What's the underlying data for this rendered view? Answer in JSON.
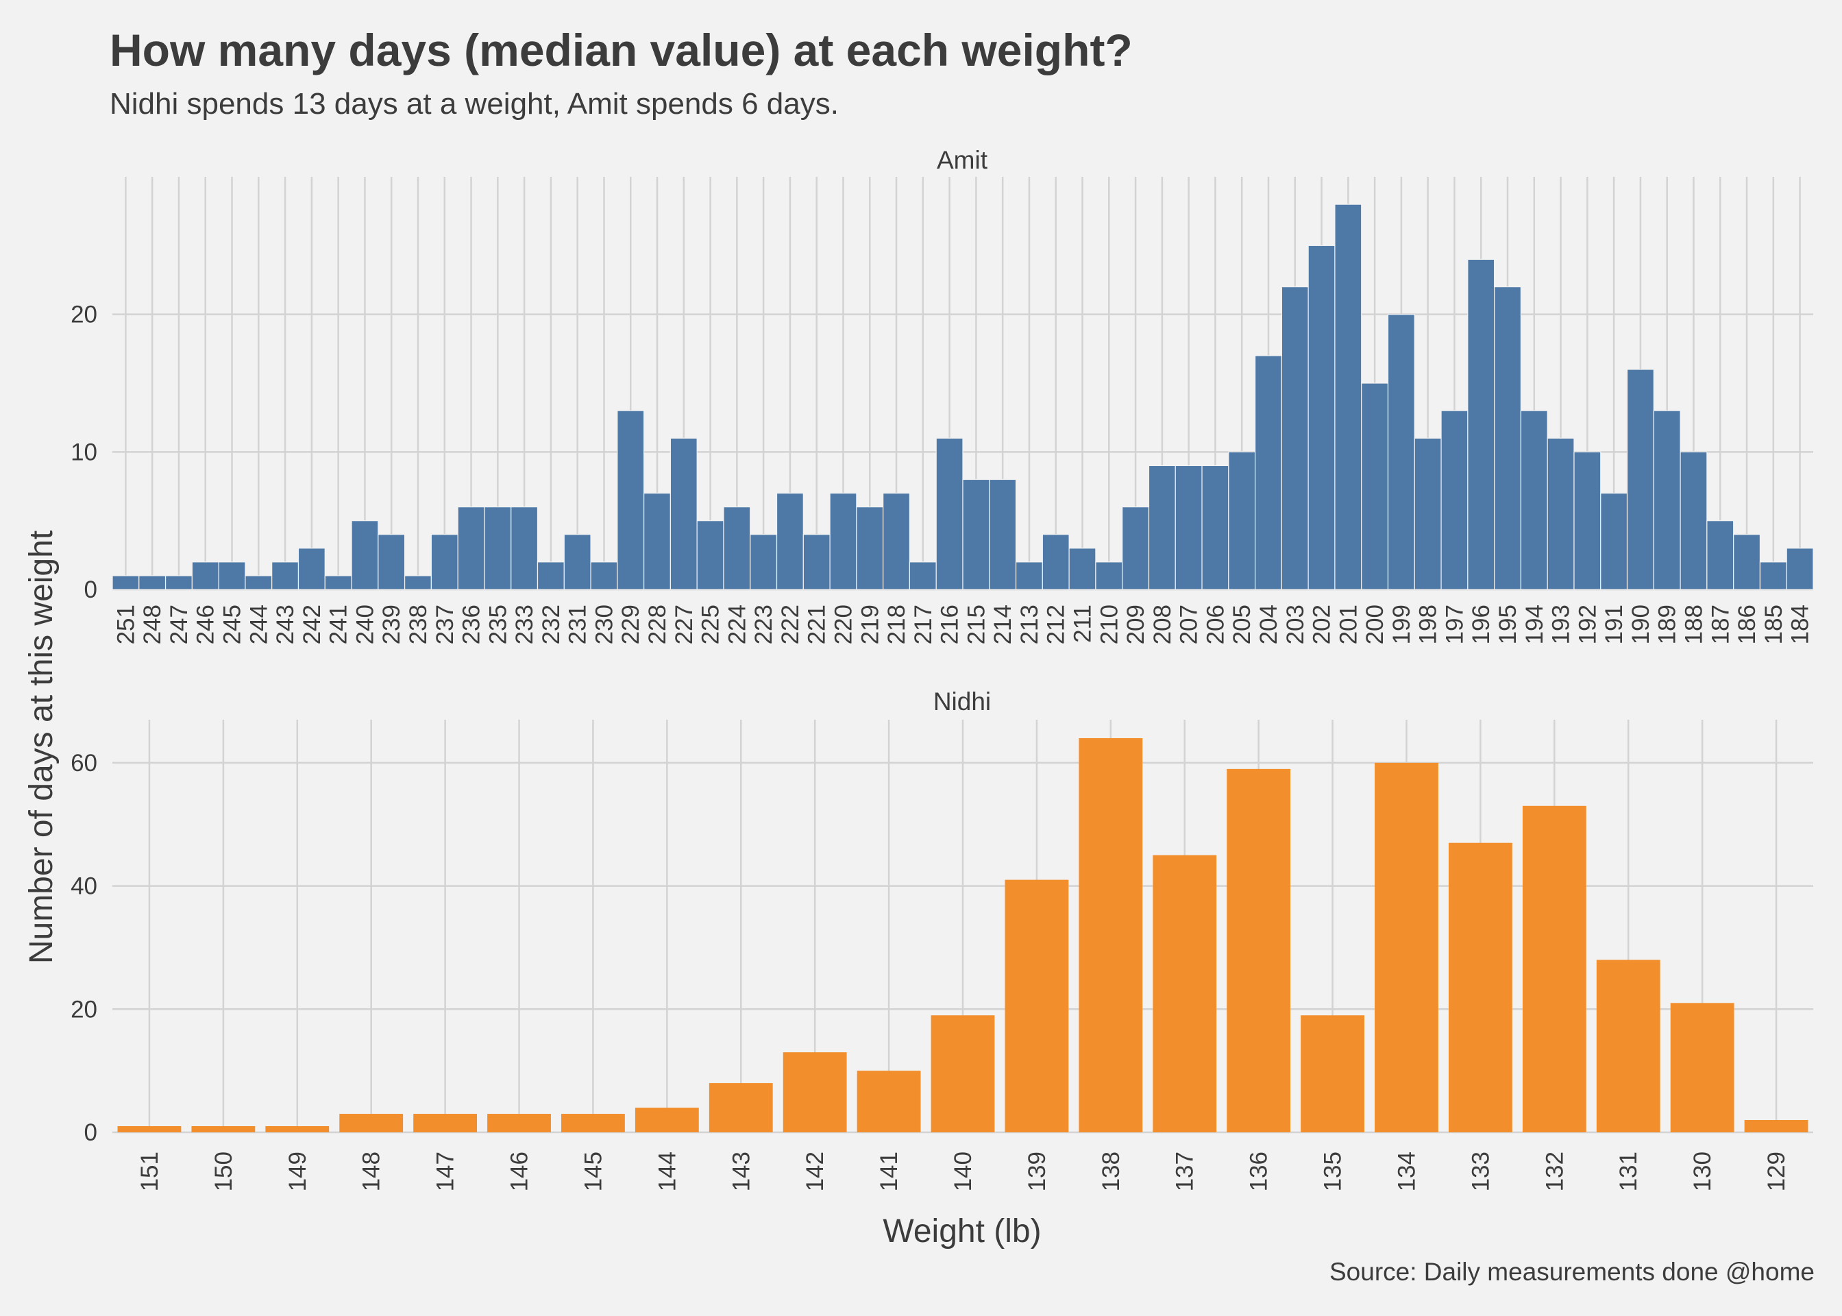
{
  "chart_data": {
    "type": "bar",
    "title": "How many days (median value) at each weight?",
    "subtitle": "Nidhi spends 13 days at a weight, Amit spends 6 days.",
    "xlabel": "Weight (lb)",
    "ylabel": "Number of days at this weight",
    "caption": "Source: Daily measurements done @home",
    "grid": true,
    "panels": [
      {
        "name": "Amit",
        "color": "#4e79a7",
        "ylim": [
          0,
          30
        ],
        "yticks": [
          0,
          10,
          20
        ],
        "categories": [
          "251",
          "248",
          "247",
          "246",
          "245",
          "244",
          "243",
          "242",
          "241",
          "240",
          "239",
          "238",
          "237",
          "236",
          "235",
          "233",
          "232",
          "231",
          "230",
          "229",
          "228",
          "227",
          "225",
          "224",
          "223",
          "222",
          "221",
          "220",
          "219",
          "218",
          "217",
          "216",
          "215",
          "214",
          "213",
          "212",
          "211",
          "210",
          "209",
          "208",
          "207",
          "206",
          "205",
          "204",
          "203",
          "202",
          "201",
          "200",
          "199",
          "198",
          "197",
          "196",
          "195",
          "194",
          "193",
          "192",
          "191",
          "190",
          "189",
          "188",
          "187",
          "186",
          "185",
          "184"
        ],
        "values": [
          1,
          1,
          1,
          2,
          2,
          1,
          2,
          3,
          1,
          5,
          4,
          1,
          4,
          6,
          6,
          6,
          2,
          4,
          2,
          13,
          7,
          11,
          5,
          6,
          4,
          7,
          4,
          7,
          6,
          7,
          2,
          11,
          8,
          8,
          2,
          4,
          3,
          2,
          6,
          9,
          9,
          9,
          10,
          17,
          22,
          25,
          28,
          15,
          20,
          11,
          13,
          24,
          22,
          13,
          11,
          10,
          7,
          16,
          13,
          10,
          5,
          4,
          2,
          3
        ]
      },
      {
        "name": "Nidhi",
        "color": "#f28e2b",
        "ylim": [
          0,
          67
        ],
        "yticks": [
          0,
          20,
          40,
          60
        ],
        "categories": [
          "151",
          "150",
          "149",
          "148",
          "147",
          "146",
          "145",
          "144",
          "143",
          "142",
          "141",
          "140",
          "139",
          "138",
          "137",
          "136",
          "135",
          "134",
          "133",
          "132",
          "131",
          "130",
          "129"
        ],
        "values": [
          1,
          1,
          1,
          3,
          3,
          3,
          3,
          4,
          8,
          13,
          10,
          19,
          41,
          64,
          45,
          59,
          19,
          60,
          47,
          53,
          28,
          21,
          2
        ]
      }
    ]
  }
}
